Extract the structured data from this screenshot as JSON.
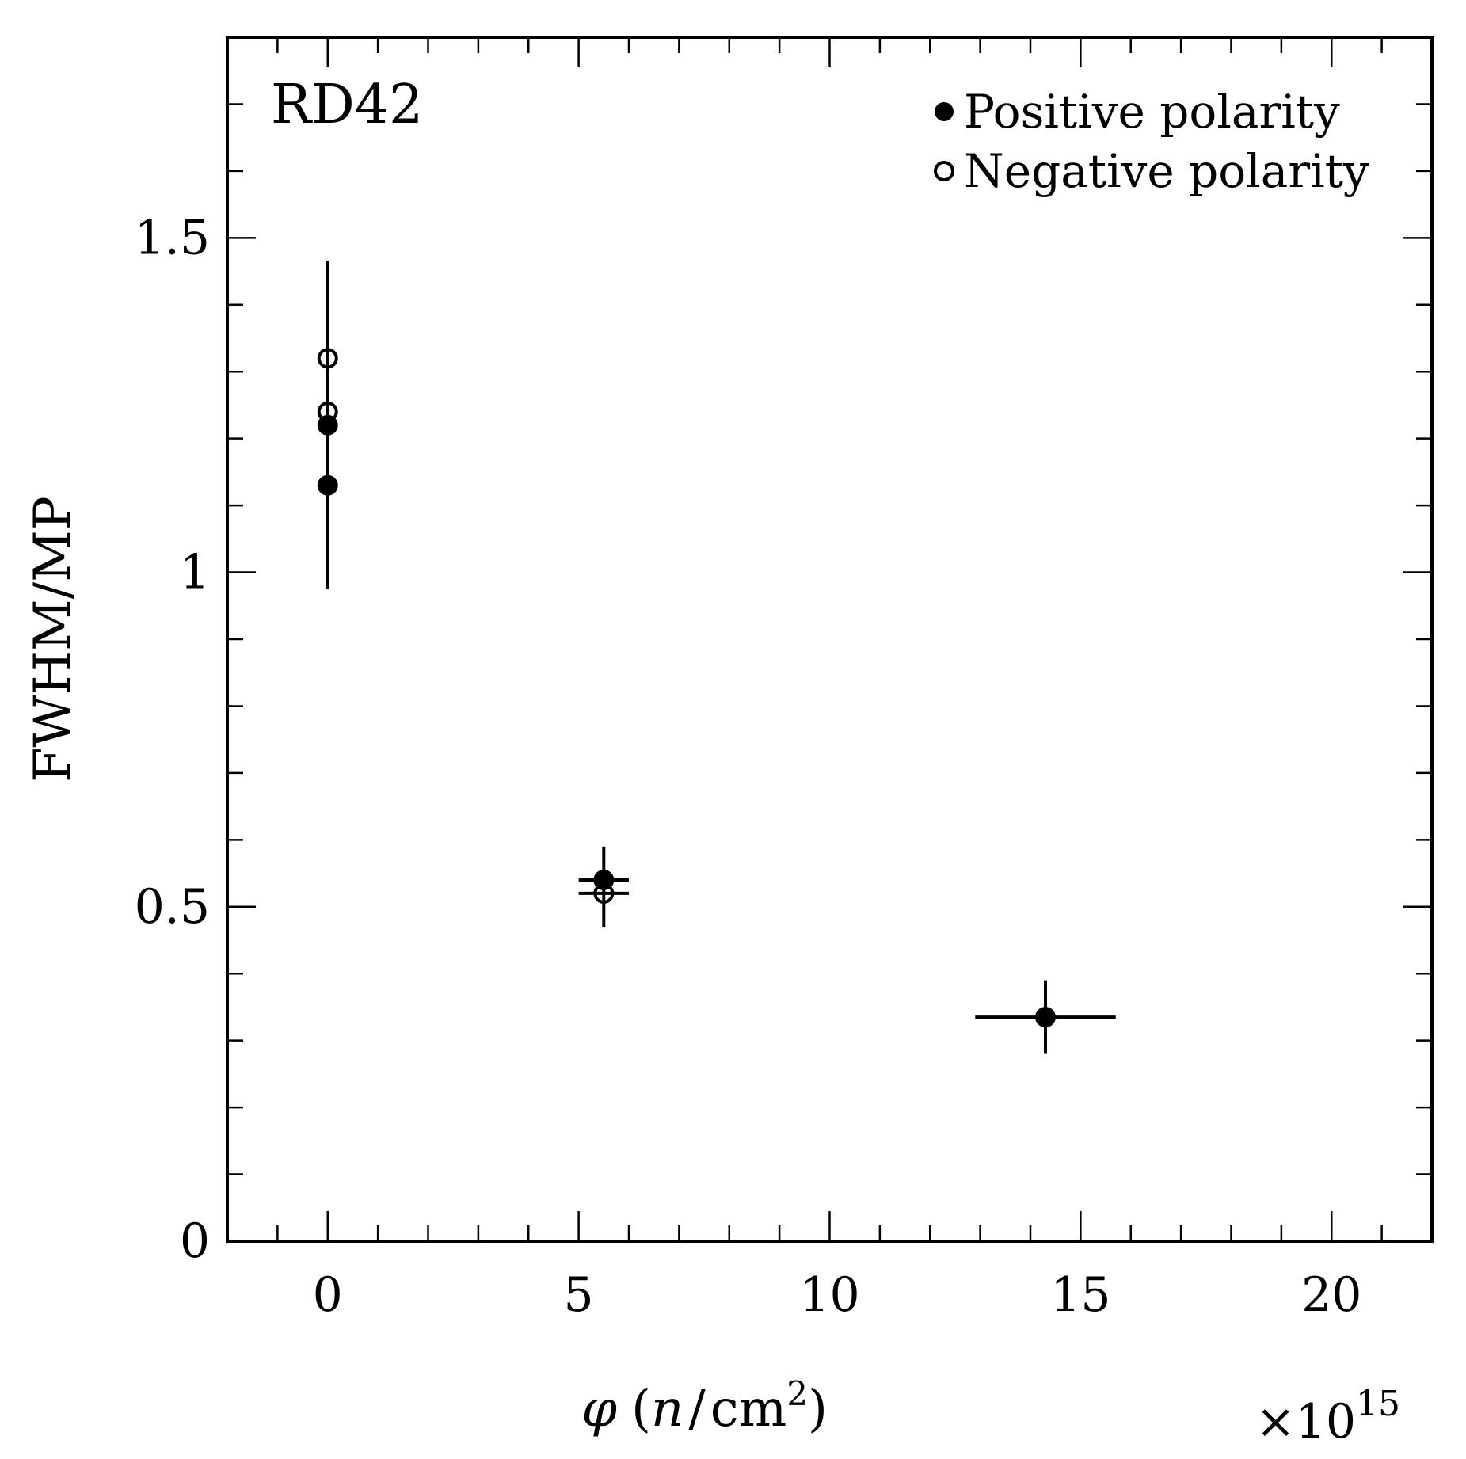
{
  "chart_data": {
    "type": "scatter",
    "annotation": "RD42",
    "xlabel": "φ (n/cm²)",
    "xlabel_parts": {
      "symbol": "φ",
      "open": "(",
      "unit_n": "n",
      "slash": "/",
      "unit_cm": "cm",
      "power": "2",
      "close": ")"
    },
    "x_multiplier": {
      "times": "×10",
      "power": "15"
    },
    "ylabel": "FWHM/MP",
    "xlim": [
      -2,
      22
    ],
    "ylim": [
      0,
      1.8
    ],
    "xticks": [
      {
        "value": 0,
        "label": "0"
      },
      {
        "value": 5,
        "label": "5"
      },
      {
        "value": 10,
        "label": "10"
      },
      {
        "value": 15,
        "label": "15"
      },
      {
        "value": 20,
        "label": "20"
      }
    ],
    "yticks": [
      {
        "value": 0,
        "label": "0"
      },
      {
        "value": 0.5,
        "label": "0.5"
      },
      {
        "value": 1,
        "label": "1"
      },
      {
        "value": 1.5,
        "label": "1.5"
      }
    ],
    "x_minor_step": 1,
    "y_minor_step": 0.1,
    "legend": {
      "placement": "top-right",
      "entries": [
        "Positive polarity",
        "Negative polarity"
      ]
    },
    "series": [
      {
        "name": "Positive polarity",
        "marker": "filled-circle",
        "points": [
          {
            "x": 0,
            "y": 1.22,
            "yerr_low": 0.245,
            "yerr_high": 0.245,
            "xerr": 0
          },
          {
            "x": 0,
            "y": 1.13,
            "yerr_low": 0,
            "yerr_high": 0,
            "xerr": 0
          },
          {
            "x": 5.5,
            "y": 0.54,
            "yerr_low": 0.07,
            "yerr_high": 0.05,
            "xerr": 0.5
          },
          {
            "x": 14.3,
            "y": 0.335,
            "yerr_low": 0.055,
            "yerr_high": 0.055,
            "xerr": 1.4
          }
        ]
      },
      {
        "name": "Negative polarity",
        "marker": "open-circle",
        "points": [
          {
            "x": 0,
            "y": 1.32,
            "yerr_low": 0,
            "yerr_high": 0,
            "xerr": 0
          },
          {
            "x": 0,
            "y": 1.24,
            "yerr_low": 0,
            "yerr_high": 0,
            "xerr": 0
          },
          {
            "x": 5.5,
            "y": 0.52,
            "yerr_low": 0,
            "yerr_high": 0,
            "xerr": 0.5
          }
        ]
      }
    ]
  }
}
